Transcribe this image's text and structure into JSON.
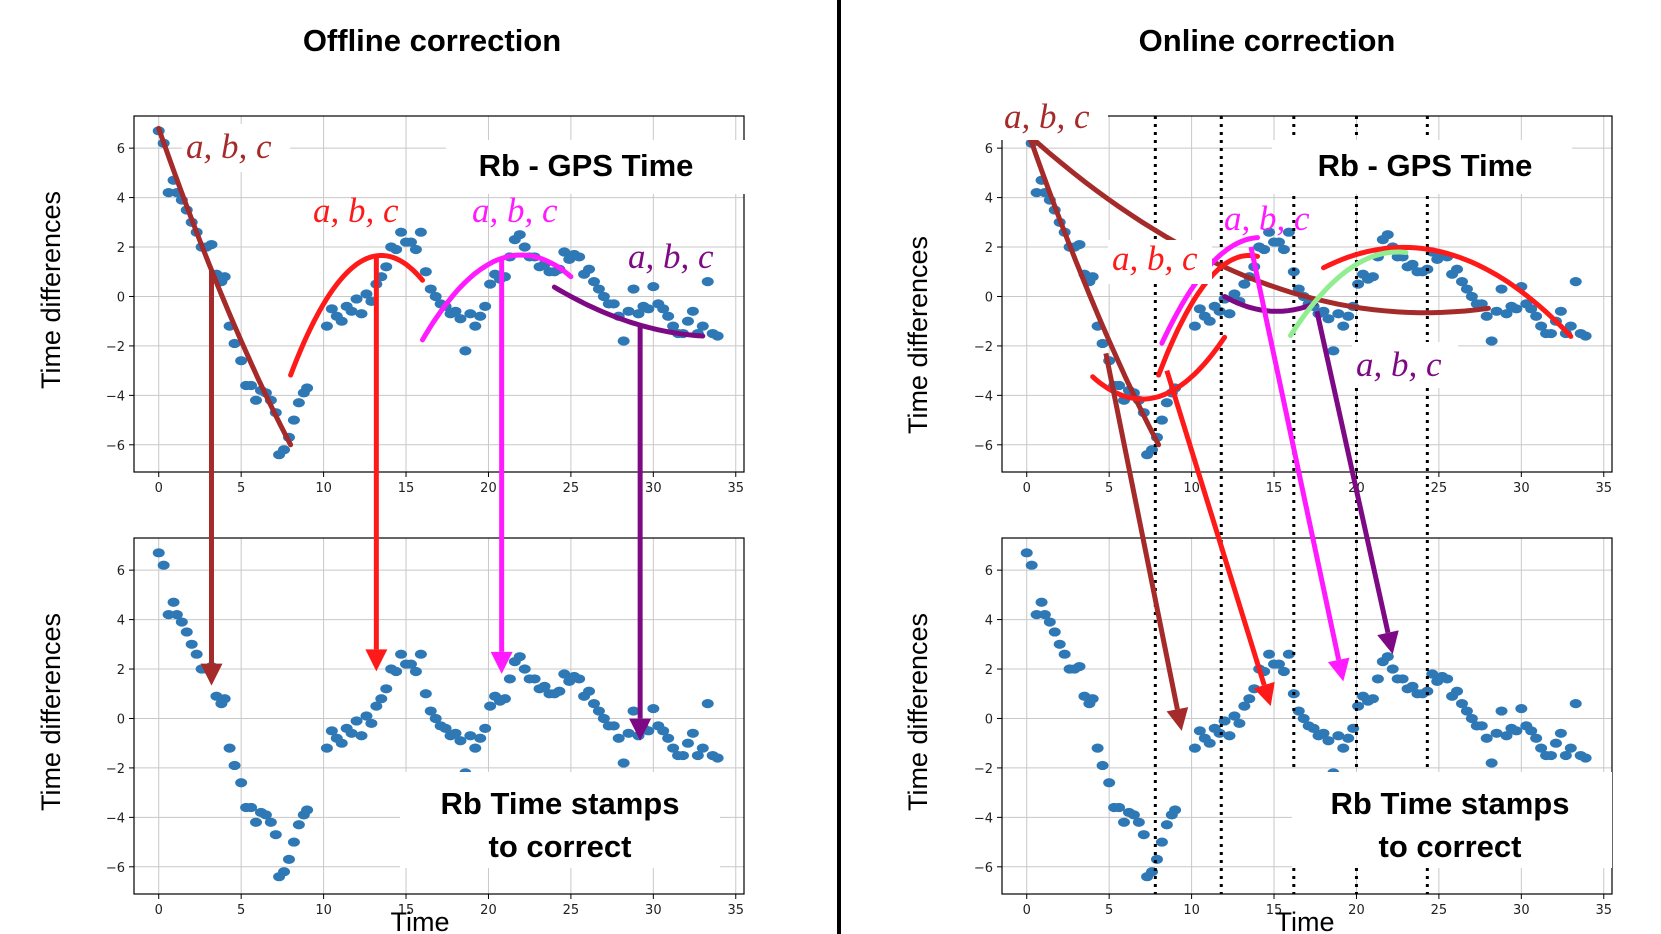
{
  "titles": {
    "left": "Offline correction",
    "right": "Online correction"
  },
  "axis_labels": {
    "y": "Time differences",
    "x": "Time"
  },
  "boxes": {
    "top": "Rb - GPS Time",
    "bottom_line1": "Rb Time stamps",
    "bottom_line2": "to correct"
  },
  "params_label": "a, b, c",
  "colors": {
    "points": "#2e78b5",
    "brown": "#a52a2a",
    "red": "#ff1a1a",
    "magenta": "#ff1aff",
    "purple": "#7d0a84",
    "lightgreen": "#90ee90"
  },
  "chart_data": {
    "type": "scatter",
    "xlim": [
      -1.5,
      35.5
    ],
    "ylim": [
      -7.1,
      7.3
    ],
    "xticks": [
      0,
      5,
      10,
      15,
      20,
      25,
      30,
      35
    ],
    "yticks": [
      -6,
      -4,
      -2,
      0,
      2,
      4,
      6
    ],
    "grid": true,
    "points": [
      [
        0,
        6.7
      ],
      [
        0.3,
        6.2
      ],
      [
        0.6,
        4.2
      ],
      [
        0.9,
        4.7
      ],
      [
        1.1,
        4.2
      ],
      [
        1.4,
        3.9
      ],
      [
        1.7,
        3.5
      ],
      [
        2,
        3.0
      ],
      [
        2.3,
        2.6
      ],
      [
        2.6,
        2.0
      ],
      [
        2.9,
        2.0
      ],
      [
        3.2,
        2.1
      ],
      [
        3.5,
        0.9
      ],
      [
        3.8,
        0.6
      ],
      [
        4,
        0.8
      ],
      [
        4.3,
        -1.2
      ],
      [
        4.6,
        -1.9
      ],
      [
        5,
        -2.6
      ],
      [
        5.3,
        -3.6
      ],
      [
        5.6,
        -3.6
      ],
      [
        5.9,
        -4.2
      ],
      [
        6.2,
        -3.8
      ],
      [
        6.5,
        -3.9
      ],
      [
        6.8,
        -4.2
      ],
      [
        7.1,
        -4.7
      ],
      [
        7.3,
        -6.4
      ],
      [
        7.6,
        -6.2
      ],
      [
        7.9,
        -5.7
      ],
      [
        8.2,
        -5.0
      ],
      [
        8.5,
        -4.3
      ],
      [
        8.8,
        -3.9
      ],
      [
        9,
        -3.7
      ],
      [
        10.2,
        -1.2
      ],
      [
        10.5,
        -0.5
      ],
      [
        10.8,
        -0.8
      ],
      [
        11.1,
        -1.0
      ],
      [
        11.4,
        -0.4
      ],
      [
        11.7,
        -0.6
      ],
      [
        12,
        -0.1
      ],
      [
        12.3,
        -0.7
      ],
      [
        12.6,
        0.1
      ],
      [
        12.9,
        -0.2
      ],
      [
        13.2,
        0.5
      ],
      [
        13.5,
        0.8
      ],
      [
        13.8,
        1.2
      ],
      [
        14.1,
        2.0
      ],
      [
        14.4,
        1.9
      ],
      [
        14.7,
        2.6
      ],
      [
        15,
        2.2
      ],
      [
        15.3,
        2.2
      ],
      [
        15.6,
        1.9
      ],
      [
        15.9,
        2.6
      ],
      [
        16.2,
        1.0
      ],
      [
        16.5,
        0.3
      ],
      [
        16.8,
        0.0
      ],
      [
        17.1,
        -0.3
      ],
      [
        17.4,
        -0.4
      ],
      [
        17.7,
        -0.7
      ],
      [
        18,
        -0.6
      ],
      [
        18.3,
        -0.9
      ],
      [
        18.6,
        -2.2
      ],
      [
        18.9,
        -0.7
      ],
      [
        19.2,
        -1.2
      ],
      [
        19.5,
        -0.8
      ],
      [
        19.8,
        -0.4
      ],
      [
        20.1,
        0.5
      ],
      [
        20.4,
        0.9
      ],
      [
        20.7,
        0.7
      ],
      [
        21,
        0.8
      ],
      [
        21.3,
        1.6
      ],
      [
        21.6,
        2.3
      ],
      [
        21.9,
        2.5
      ],
      [
        22.2,
        2.0
      ],
      [
        22.5,
        1.6
      ],
      [
        22.8,
        1.6
      ],
      [
        23.1,
        1.2
      ],
      [
        23.4,
        1.3
      ],
      [
        23.7,
        1.0
      ],
      [
        24,
        1.0
      ],
      [
        24.3,
        1.1
      ],
      [
        24.6,
        1.8
      ],
      [
        24.9,
        1.5
      ],
      [
        25.2,
        1.7
      ],
      [
        25.5,
        1.6
      ],
      [
        25.8,
        0.9
      ],
      [
        26.1,
        1.1
      ],
      [
        26.4,
        0.6
      ],
      [
        26.7,
        0.3
      ],
      [
        27,
        0.0
      ],
      [
        27.3,
        -0.3
      ],
      [
        27.6,
        -0.3
      ],
      [
        27.9,
        -0.8
      ],
      [
        28.2,
        -1.8
      ],
      [
        28.5,
        -0.6
      ],
      [
        28.8,
        0.3
      ],
      [
        29.1,
        -0.7
      ],
      [
        29.4,
        -0.4
      ],
      [
        29.7,
        -0.5
      ],
      [
        30,
        0.4
      ],
      [
        30.3,
        -0.3
      ],
      [
        30.6,
        -0.5
      ],
      [
        30.9,
        -0.8
      ],
      [
        31.2,
        -1.2
      ],
      [
        31.5,
        -1.5
      ],
      [
        31.8,
        -1.5
      ],
      [
        32.1,
        -1.0
      ],
      [
        32.4,
        -0.6
      ],
      [
        32.7,
        -1.5
      ],
      [
        33,
        -1.2
      ],
      [
        33.3,
        0.6
      ],
      [
        33.6,
        -1.5
      ],
      [
        33.9,
        -1.6
      ]
    ],
    "offline_fits": [
      {
        "name": "a, b, c",
        "color": "brown",
        "x": [
          0,
          8
        ],
        "coeffs": [
          0.04,
          -1.92,
          6.8
        ],
        "arrow_x": 3.2
      },
      {
        "name": "a, b, c",
        "color": "red",
        "x": [
          8,
          16
        ],
        "coeffs": [
          -0.16,
          4.32,
          -27.5
        ],
        "arrow_x": 13.2
      },
      {
        "name": "a, b, c",
        "color": "magenta",
        "x": [
          16,
          25
        ],
        "coeffs": [
          -0.096,
          4.22,
          -44.7
        ],
        "arrow_x": 20.8
      },
      {
        "name": "a, b, c",
        "color": "purple",
        "x": [
          24,
          33
        ],
        "coeffs": [
          0.02,
          -1.36,
          21.5
        ],
        "arrow_x": 29.2
      }
    ],
    "online_fits": [
      {
        "name": "a, b, c",
        "color": "brown",
        "x": [
          0,
          8
        ],
        "coeffs": [
          0.04,
          -1.92,
          6.8
        ]
      },
      {
        "name": "a, b, c",
        "color": "brown",
        "x": [
          0,
          28
        ],
        "coeffs": [
          0.0124,
          -0.6,
          6.6
        ]
      },
      {
        "name": "a, b, c",
        "color": "red",
        "x": [
          4,
          12
        ],
        "coeffs": [
          0.1,
          -1.4,
          0.75
        ]
      },
      {
        "name": "a, b, c",
        "color": "red",
        "x": [
          8,
          14
        ],
        "coeffs": [
          -0.16,
          4.32,
          -27.5
        ]
      },
      {
        "name": "a, b, c",
        "color": "red",
        "x": [
          18,
          33
        ],
        "coeffs": [
          -0.035,
          1.6,
          -16.3
        ]
      },
      {
        "name": "a, b, c",
        "color": "magenta",
        "x": [
          8.2,
          14
        ],
        "coeffs": [
          -0.12,
          3.4,
          -21.7
        ]
      },
      {
        "name": "a, b, c",
        "color": "purple",
        "x": [
          12,
          17.5
        ],
        "coeffs": [
          0.06,
          -1.82,
          13.2
        ]
      },
      {
        "name": "a, b, c",
        "color": "lightgreen",
        "x": [
          16,
          23
        ],
        "coeffs": [
          -0.08,
          3.6,
          -38.7
        ]
      }
    ],
    "online_windows_x": [
      7.8,
      11.8,
      16.2,
      20.0,
      24.3
    ],
    "online_arrows": [
      {
        "color": "brown",
        "from": [
          4.8,
          -2.3
        ],
        "to": [
          9.4,
          -0.5
        ]
      },
      {
        "color": "red",
        "from": [
          8.5,
          -3.0
        ],
        "to": [
          14.8,
          0.5
        ]
      },
      {
        "color": "magenta",
        "from": [
          13.6,
          2.0
        ],
        "to": [
          19.2,
          1.5
        ]
      },
      {
        "color": "purple",
        "from": [
          17.6,
          -0.6
        ],
        "to": [
          22.2,
          2.6
        ]
      }
    ]
  }
}
